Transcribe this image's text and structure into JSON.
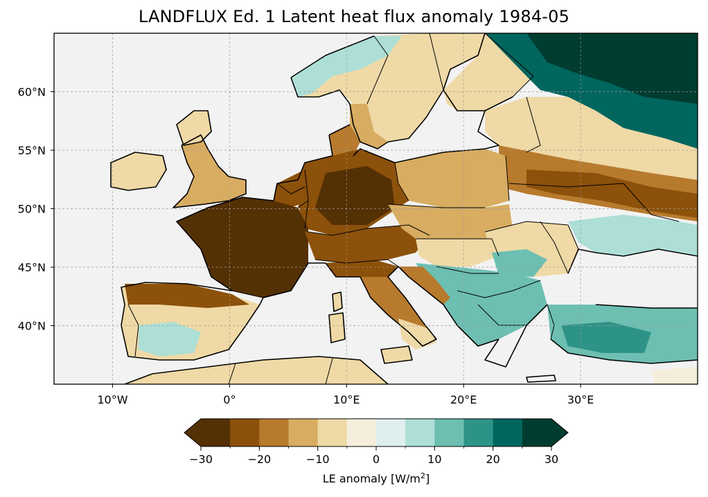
{
  "title": "LANDFLUX Ed. 1 Latent heat flux anomaly 1984-05",
  "map": {
    "extent": {
      "lon_min": -15,
      "lon_max": 40,
      "lat_min": 35,
      "lat_max": 65
    },
    "ocean_color": "#f2f2f2",
    "gridlines": true,
    "lon_ticks": [
      {
        "lon": -10,
        "label": "10°W"
      },
      {
        "lon": 0,
        "label": "0°"
      },
      {
        "lon": 10,
        "label": "10°E"
      },
      {
        "lon": 20,
        "label": "20°E"
      },
      {
        "lon": 30,
        "label": "30°E"
      }
    ],
    "lat_ticks": [
      {
        "lat": 40,
        "label": "40°N"
      },
      {
        "lat": 45,
        "label": "45°N"
      },
      {
        "lat": 50,
        "label": "50°N"
      },
      {
        "lat": 55,
        "label": "55°N"
      },
      {
        "lat": 60,
        "label": "60°N"
      }
    ]
  },
  "colorbar": {
    "label_prefix": "LE anomaly [W/m",
    "label_sup": "2",
    "label_suffix": "]",
    "min": -30,
    "max": 30,
    "extend": "both",
    "tick_labels": [
      "−30",
      "−20",
      "−10",
      "0",
      "10",
      "20",
      "30"
    ],
    "tick_values": [
      -30,
      -20,
      -10,
      0,
      10,
      20,
      30
    ],
    "bins": [
      {
        "from": -30,
        "to": -25,
        "color": "#543005"
      },
      {
        "from": -25,
        "to": -20,
        "color": "#8c510a"
      },
      {
        "from": -20,
        "to": -15,
        "color": "#b87a2d"
      },
      {
        "from": -15,
        "to": -10,
        "color": "#d8ad62"
      },
      {
        "from": -10,
        "to": -5,
        "color": "#efd9a6"
      },
      {
        "from": -5,
        "to": 0,
        "color": "#f5eedc"
      },
      {
        "from": 0,
        "to": 5,
        "color": "#deefee"
      },
      {
        "from": 5,
        "to": 10,
        "color": "#addfd7"
      },
      {
        "from": 10,
        "to": 15,
        "color": "#6dbfb2"
      },
      {
        "from": 15,
        "to": 20,
        "color": "#2e9387"
      },
      {
        "from": 20,
        "to": 25,
        "color": "#01665e"
      },
      {
        "from": 25,
        "to": 30,
        "color": "#003c30"
      }
    ]
  }
}
